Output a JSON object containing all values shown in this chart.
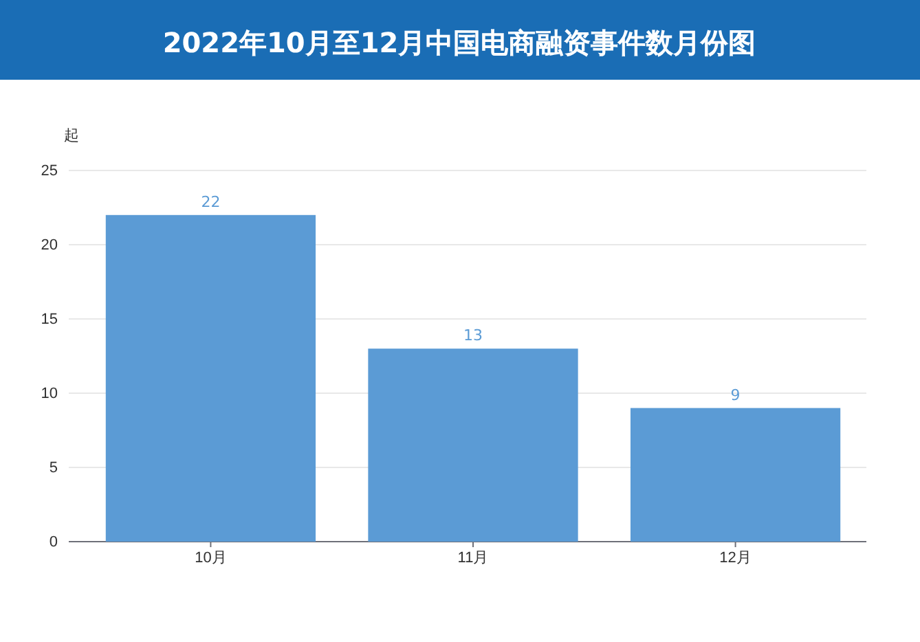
{
  "chart_data": {
    "type": "bar",
    "title": "2022年10月至12月中国电商融资事件数月份图",
    "ylabel": "起",
    "categories": [
      "10月",
      "11月",
      "12月"
    ],
    "values": [
      22,
      13,
      9
    ],
    "color": "#5b9bd5",
    "ylim": [
      0,
      25
    ],
    "yticks": [
      0,
      5,
      10,
      15,
      20,
      25
    ],
    "grid": "y",
    "data_labels": true
  }
}
